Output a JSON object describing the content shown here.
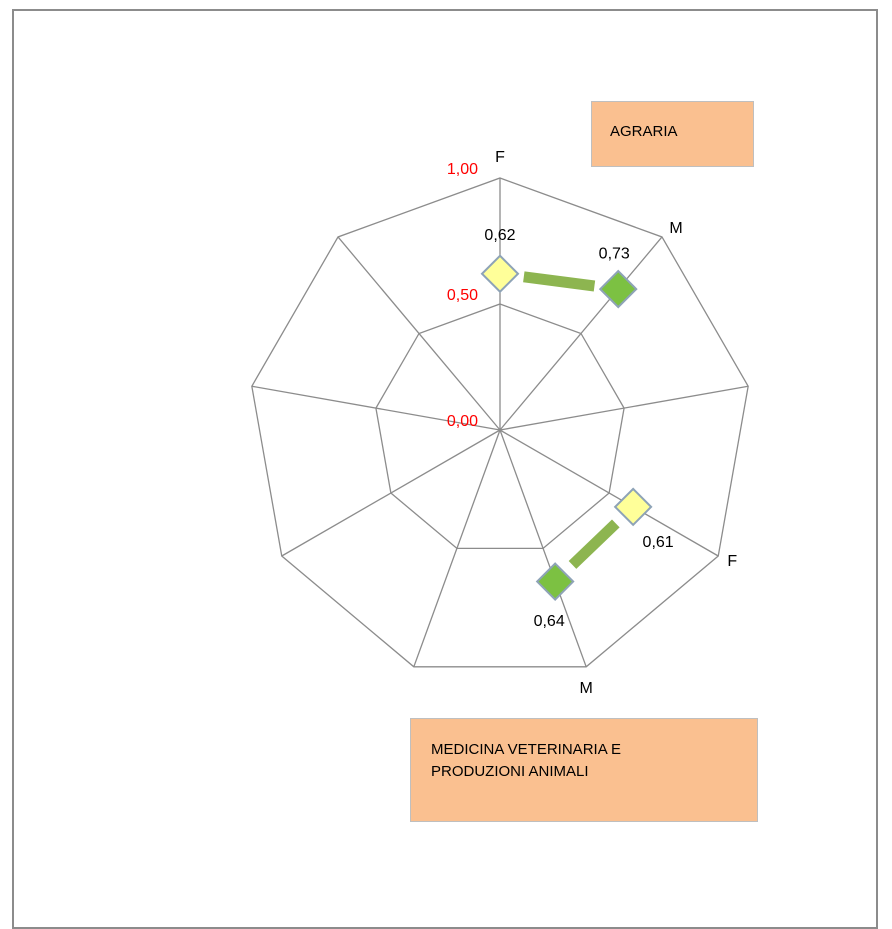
{
  "chart_data": {
    "type": "radar",
    "axes": [
      "F",
      "M",
      "",
      "F",
      "M",
      "",
      "",
      "",
      ""
    ],
    "scale_labels": [
      "1,00",
      "0,50",
      "0,00"
    ],
    "range": [
      0,
      1
    ],
    "groups": [
      {
        "name": "AGRARIA",
        "points": [
          {
            "axis_index": 0,
            "axis": "F",
            "value": 0.62,
            "label": "0,62"
          },
          {
            "axis_index": 1,
            "axis": "M",
            "value": 0.73,
            "label": "0,73"
          }
        ]
      },
      {
        "name": "MEDICINA VETERINARIA E PRODUZIONI ANIMALI",
        "points": [
          {
            "axis_index": 3,
            "axis": "F",
            "value": 0.61,
            "label": "0,61"
          },
          {
            "axis_index": 4,
            "axis": "M",
            "value": 0.64,
            "label": "0,64"
          }
        ]
      }
    ],
    "colors": {
      "F_marker": "#ffff99",
      "M_marker": "#7cc142",
      "connector": "#8db550",
      "scale_label": "#ff0000",
      "box_fill": "#fac090"
    }
  },
  "boxes": {
    "top": "AGRARIA",
    "bottom_line1": "MEDICINA VETERINARIA E",
    "bottom_line2": "PRODUZIONI ANIMALI"
  }
}
